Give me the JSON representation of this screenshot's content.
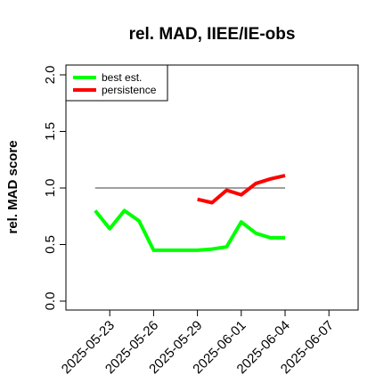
{
  "chart_data": {
    "type": "line",
    "title": "rel. MAD, IIEE/IE-obs",
    "xlabel": "",
    "ylabel": "rel. MAD score",
    "ylim": [
      0,
      2
    ],
    "yticks": [
      "0.0",
      "0.5",
      "1.0",
      "1.5",
      "2.0"
    ],
    "xlim": [
      "2025-05-20",
      "2025-06-09"
    ],
    "xticks": [
      "2025-05-23",
      "2025-05-26",
      "2025-05-29",
      "2025-06-01",
      "2025-06-04",
      "2025-06-07"
    ],
    "grid": false,
    "legend": {
      "position": "top-left",
      "entries": [
        "best est.",
        "persistence"
      ]
    },
    "reference_line": {
      "y": 1.0,
      "x_start": "2025-05-22",
      "x_end": "2025-06-04",
      "color": "#666666"
    },
    "series": [
      {
        "name": "best est.",
        "color": "#00ff00",
        "x": [
          "2025-05-22",
          "2025-05-23",
          "2025-05-24",
          "2025-05-25",
          "2025-05-26",
          "2025-05-27",
          "2025-05-28",
          "2025-05-29",
          "2025-05-30",
          "2025-05-31",
          "2025-06-01",
          "2025-06-02",
          "2025-06-03",
          "2025-06-04"
        ],
        "values": [
          0.8,
          0.64,
          0.8,
          0.71,
          0.45,
          0.45,
          0.45,
          0.45,
          0.46,
          0.48,
          0.7,
          0.6,
          0.56,
          0.56
        ]
      },
      {
        "name": "persistence",
        "color": "#ff0000",
        "x": [
          "2025-05-29",
          "2025-05-30",
          "2025-05-31",
          "2025-06-01",
          "2025-06-02",
          "2025-06-03",
          "2025-06-04"
        ],
        "values": [
          0.9,
          0.87,
          0.98,
          0.94,
          1.04,
          1.08,
          1.11
        ]
      }
    ]
  }
}
